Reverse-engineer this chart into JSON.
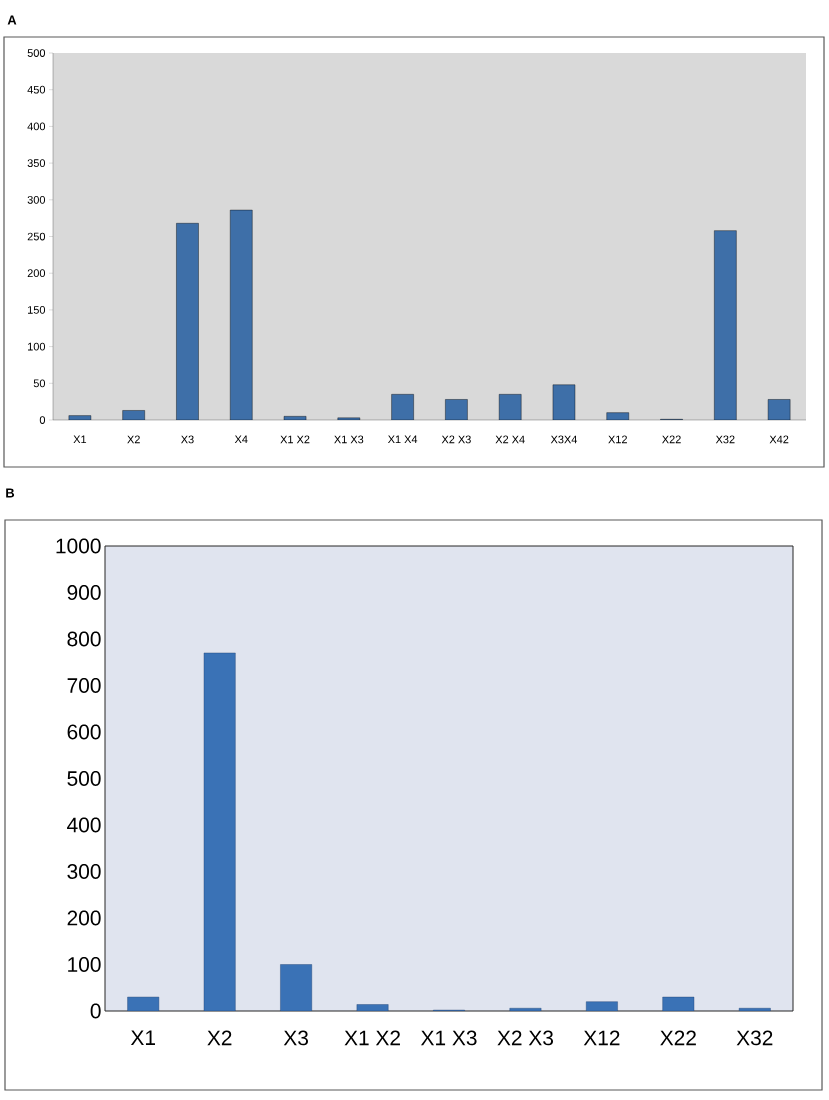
{
  "chart_data": [
    {
      "type": "bar",
      "title": "A",
      "categories": [
        "X1",
        "X2",
        "X3",
        "X4",
        "X1 X2",
        "X1 X3",
        "X1 X4",
        "X2 X3",
        "X2 X4",
        "X3X4",
        "X12",
        "X22",
        "X32",
        "X42"
      ],
      "values": [
        6,
        13,
        268,
        286,
        5,
        3,
        35,
        28,
        35,
        48,
        10,
        1,
        258,
        28
      ],
      "color": "#3e6fa8",
      "ylim": [
        0,
        500
      ],
      "yticks": [
        0,
        50,
        100,
        150,
        200,
        250,
        300,
        350,
        400,
        450,
        500
      ],
      "grid": false
    },
    {
      "type": "bar",
      "title": "B",
      "categories": [
        "X1",
        "X2",
        "X3",
        "X1 X2",
        "X1 X3",
        "X2 X3",
        "X12",
        "X22",
        "X32"
      ],
      "values": [
        30,
        770,
        100,
        14,
        2,
        6,
        20,
        30,
        6
      ],
      "color": "#3a72b6",
      "ylim": [
        0,
        1000
      ],
      "yticks": [
        0,
        100,
        200,
        300,
        400,
        500,
        600,
        700,
        800,
        900,
        1000
      ],
      "grid": false
    }
  ]
}
